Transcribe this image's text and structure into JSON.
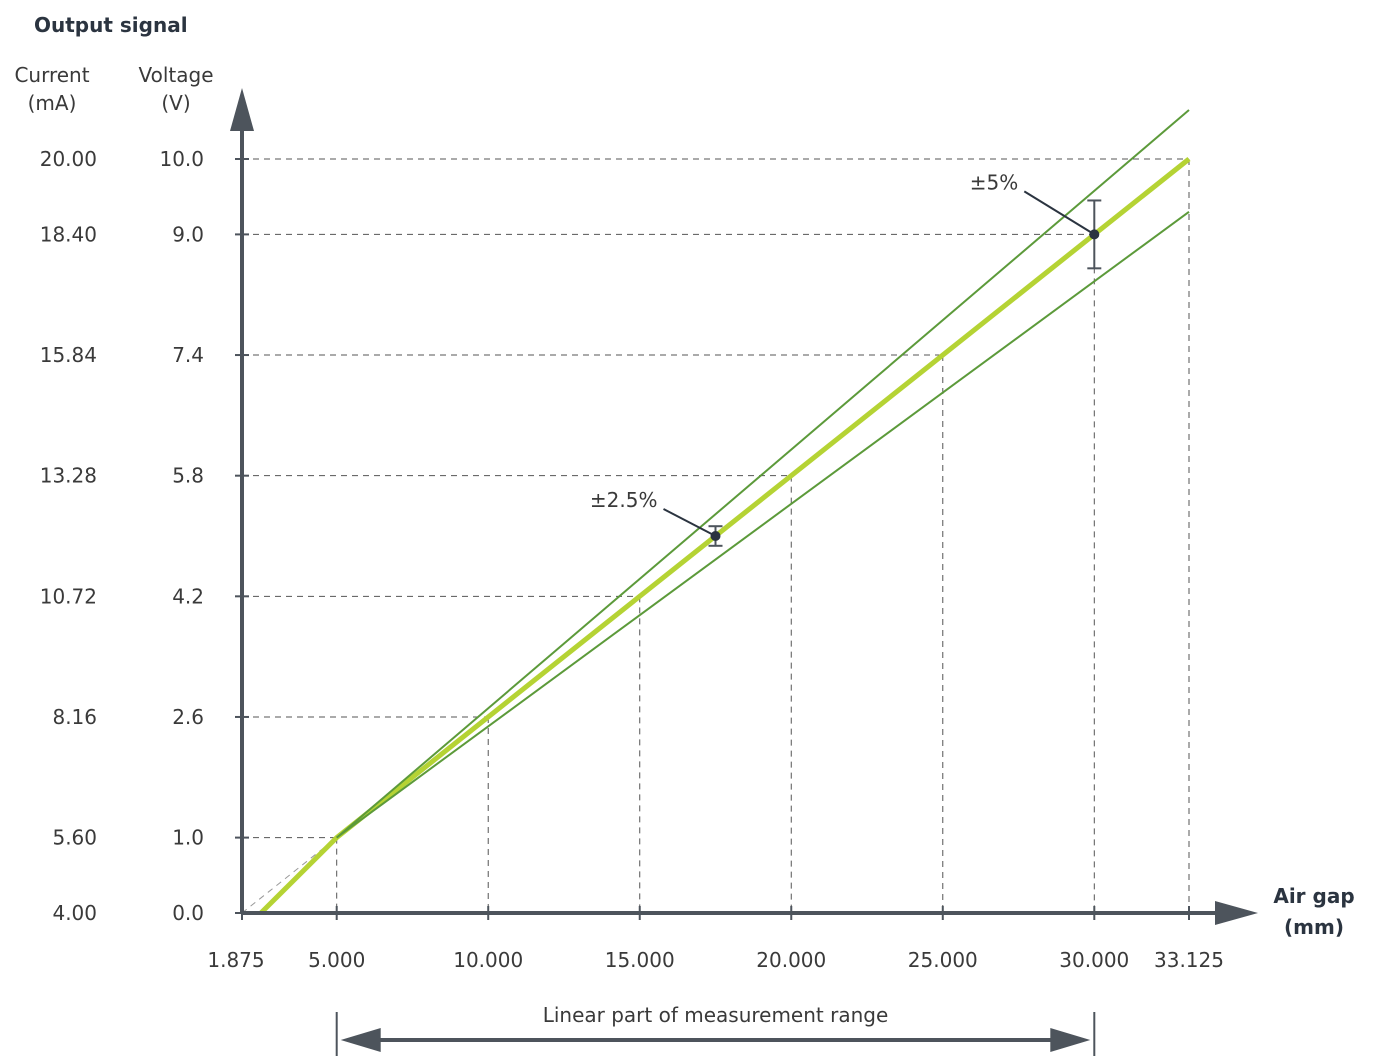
{
  "chart_data": {
    "type": "line",
    "title": "Output signal",
    "y_axis_titles": {
      "current": [
        "Current",
        "(mA)"
      ],
      "voltage": [
        "Voltage",
        "(V)"
      ]
    },
    "x_axis_title": [
      "Air gap",
      "(mm)"
    ],
    "x_ticks": [
      {
        "value": 1.875,
        "label": "1.875"
      },
      {
        "value": 5,
        "label": "5.000"
      },
      {
        "value": 10,
        "label": "10.000"
      },
      {
        "value": 15,
        "label": "15.000"
      },
      {
        "value": 20,
        "label": "20.000"
      },
      {
        "value": 25,
        "label": "25.000"
      },
      {
        "value": 30,
        "label": "30.000"
      },
      {
        "value": 33.125,
        "label": "33.125"
      }
    ],
    "y_ticks": [
      {
        "voltage": 0.0,
        "v_label": "0.0",
        "c_label": "4.00"
      },
      {
        "voltage": 1.0,
        "v_label": "1.0",
        "c_label": "5.60"
      },
      {
        "voltage": 2.6,
        "v_label": "2.6",
        "c_label": "8.16"
      },
      {
        "voltage": 4.2,
        "v_label": "4.2",
        "c_label": "10.72"
      },
      {
        "voltage": 5.8,
        "v_label": "5.8",
        "c_label": "13.28"
      },
      {
        "voltage": 7.4,
        "v_label": "7.4",
        "c_label": "15.84"
      },
      {
        "voltage": 9.0,
        "v_label": "9.0",
        "c_label": "18.40"
      },
      {
        "voltage": 10.0,
        "v_label": "10.0",
        "c_label": "20.00"
      }
    ],
    "xlim": [
      1.875,
      33.125
    ],
    "ylim": [
      0,
      10
    ],
    "guides": [
      {
        "x": 5,
        "y": 1.0
      },
      {
        "x": 10,
        "y": 2.6
      },
      {
        "x": 15,
        "y": 4.2
      },
      {
        "x": 20,
        "y": 5.8
      },
      {
        "x": 25,
        "y": 7.4
      },
      {
        "x": 30,
        "y": 9.0
      },
      {
        "x": 33.125,
        "y": 10.0
      }
    ],
    "series": [
      {
        "role": "nominal",
        "color": "#b5d334",
        "x": [
          2.5,
          5,
          33.125
        ],
        "y": [
          0.0,
          1.0,
          10.0
        ]
      },
      {
        "role": "upper",
        "color": "#5c9a3a",
        "x": [
          5,
          33.125
        ],
        "y": [
          1.0,
          10.65
        ]
      },
      {
        "role": "lower",
        "color": "#5c9a3a",
        "x": [
          5,
          33.125
        ],
        "y": [
          1.0,
          9.3
        ]
      },
      {
        "role": "ideal",
        "color": "#999999",
        "x": [
          1.875,
          33.125
        ],
        "y": [
          0.0,
          10.0
        ]
      }
    ],
    "tolerance_markers": [
      {
        "x": 17.5,
        "y": 5.0,
        "low": 4.87,
        "high": 5.13,
        "label": "±2.5%"
      },
      {
        "x": 30,
        "y": 9.0,
        "low": 8.55,
        "high": 9.45,
        "label": "±5%"
      }
    ],
    "range_annotation": {
      "from": 5,
      "to": 30,
      "label": "Linear part of measurement range"
    },
    "colors": {
      "axis": "#4d545c",
      "guide": "#555555",
      "text": "#3a3a3a",
      "marker": "#2b3440"
    },
    "grid": false
  }
}
